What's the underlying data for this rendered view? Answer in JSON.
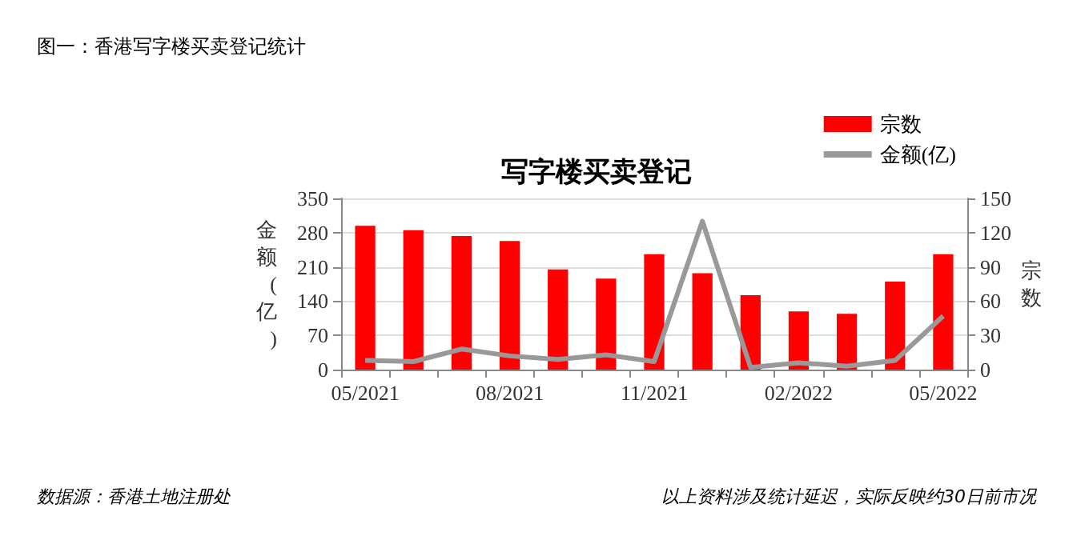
{
  "chart_data": {
    "type": "bar",
    "title": "图一：香港写字楼买卖登记统计",
    "subtitle": "写字楼买卖登记",
    "ylabel": "金额(亿)",
    "y2label": "宗数",
    "categories": [
      "05/2021",
      null,
      null,
      "08/2021",
      null,
      null,
      "11/2021",
      null,
      null,
      "02/2022",
      null,
      null,
      "05/2022"
    ],
    "series": [
      {
        "name": "宗数",
        "color": "#ff0000",
        "values": [
          294,
          285,
          273,
          263,
          205,
          186,
          236,
          197,
          152,
          119,
          114,
          180,
          236
        ]
      },
      {
        "name": "金额(亿)",
        "type": "line",
        "axis": "y2",
        "color": "#999999",
        "values": [
          8,
          7,
          18,
          12,
          9,
          13,
          7,
          130,
          2,
          6,
          3,
          8,
          47
        ]
      }
    ],
    "ylim": [
      0,
      350
    ],
    "yticks": [
      0,
      70,
      140,
      210,
      280,
      350
    ],
    "y2lim": [
      0,
      150
    ],
    "y2ticks": [
      0,
      30,
      60,
      90,
      120,
      150
    ],
    "grid": "y",
    "legend": "top right",
    "annotations": [
      "数据源：香港土地注册处",
      "以上资料涉及统计延迟，实际反映约30日前市况"
    ]
  }
}
